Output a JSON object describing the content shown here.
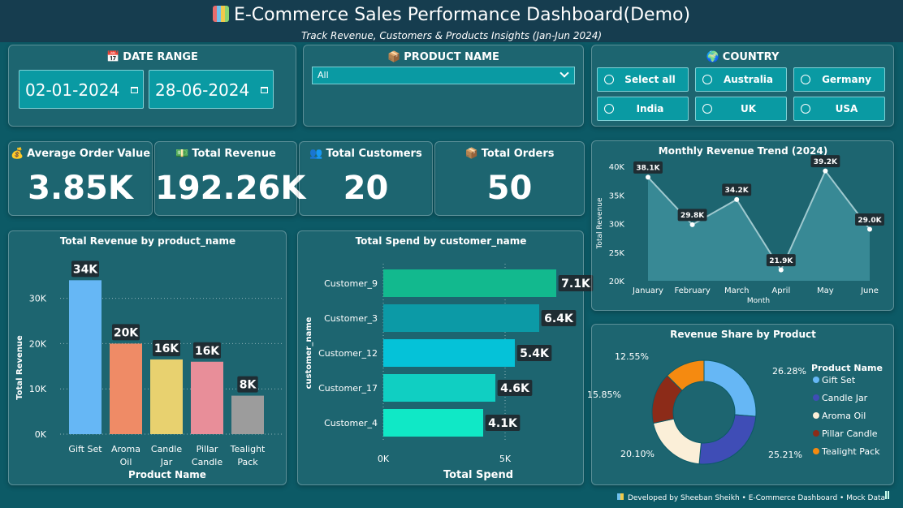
{
  "header": {
    "title": "E-Commerce Sales Performance Dashboard(Demo)",
    "subtitle": "Track Revenue, Customers & Products Insights (Jan-Jun 2024)",
    "icon": "bar-chart-icon"
  },
  "filters": {
    "date_range": {
      "label": "DATE RANGE",
      "start": "02-01-2024",
      "end": "28-06-2024",
      "icon": "calendar-icon"
    },
    "product_name": {
      "label": "PRODUCT NAME",
      "value": "All",
      "icon": "box-icon"
    },
    "country": {
      "label": "COUNTRY",
      "icon": "globe-icon",
      "options": [
        "Select all",
        "Australia",
        "Germany",
        "India",
        "UK",
        "USA"
      ]
    }
  },
  "kpis": [
    {
      "label": "Average Order Value",
      "value": "3.85K",
      "icon": "money-bag-icon"
    },
    {
      "label": "Total Revenue",
      "value": "192.26K",
      "icon": "cash-icon"
    },
    {
      "label": "Total Customers",
      "value": "20",
      "icon": "people-icon"
    },
    {
      "label": "Total Orders",
      "value": "50",
      "icon": "box-icon"
    }
  ],
  "colors": {
    "background": "#0c5a66",
    "header": "#163d4f",
    "slicer": "#0a9aa3",
    "area_fill": "#3d8f9b",
    "line": "#9fc9cf"
  },
  "chart_data": [
    {
      "type": "bar",
      "title": "Total Revenue by product_name",
      "xlabel": "Product Name",
      "ylabel": "Total Revenue",
      "categories": [
        [
          "Gift Set"
        ],
        [
          "Aroma",
          "Oil"
        ],
        [
          "Candle",
          "Jar"
        ],
        [
          "Pillar",
          "Candle"
        ],
        [
          "Tealight",
          "Pack"
        ]
      ],
      "values": [
        34000,
        20000,
        16500,
        16000,
        8500
      ],
      "data_labels": [
        "34K",
        "20K",
        "16K",
        "16K",
        "8K"
      ],
      "colors": [
        "#66b7f5",
        "#ef8b66",
        "#e8d16f",
        "#e88e99",
        "#9c9c9c"
      ],
      "ylim": [
        0,
        38000
      ],
      "yticks": [
        0,
        10000,
        20000,
        30000
      ],
      "ytick_labels": [
        "0K",
        "10K",
        "20K",
        "30K"
      ]
    },
    {
      "type": "bar",
      "orientation": "horizontal",
      "title": "Total Spend by customer_name",
      "xlabel": "Total Spend",
      "ylabel": "customer_name",
      "categories": [
        "Customer_9",
        "Customer_3",
        "Customer_12",
        "Customer_17",
        "Customer_4"
      ],
      "values": [
        7100,
        6400,
        5400,
        4600,
        4100
      ],
      "data_labels": [
        "7.1K",
        "6.4K",
        "5.4K",
        "4.6K",
        "4.1K"
      ],
      "colors": [
        "#12b98e",
        "#0c9aa6",
        "#05c2d8",
        "#10cfc2",
        "#10e8c6"
      ],
      "xlim": [
        0,
        8000
      ],
      "xticks": [
        0,
        5000
      ],
      "xtick_labels": [
        "0K",
        "5K"
      ]
    },
    {
      "type": "area",
      "title": "Monthly Revenue Trend (2024)",
      "xlabel": "Month",
      "ylabel": "Total Revenue",
      "x": [
        "January",
        "February",
        "March",
        "April",
        "May",
        "June"
      ],
      "values": [
        38100,
        29800,
        34200,
        21900,
        39200,
        29000
      ],
      "data_labels": [
        "38.1K",
        "29.8K",
        "34.2K",
        "21.9K",
        "39.2K",
        "29.0K"
      ],
      "ylim": [
        20000,
        40000
      ],
      "yticks": [
        20000,
        25000,
        30000,
        35000,
        40000
      ],
      "ytick_labels": [
        "20K",
        "25K",
        "30K",
        "35K",
        "40K"
      ]
    },
    {
      "type": "pie",
      "donut": true,
      "title": "Revenue Share by Product",
      "legend_title": "Product Name",
      "legend_position": "right",
      "categories": [
        "Gift Set",
        "Candle Jar",
        "Aroma Oil",
        "Pillar Candle",
        "Tealight Pack"
      ],
      "values": [
        26.28,
        25.21,
        20.1,
        15.85,
        12.55
      ],
      "data_labels": [
        "26.28%",
        "25.21%",
        "20.10%",
        "15.85%",
        "12.55%"
      ],
      "colors": [
        "#66b7f5",
        "#3f4db6",
        "#fbefd8",
        "#8c2b18",
        "#f58a10"
      ]
    }
  ],
  "footer": {
    "text": "Developed by Sheeban Sheikh • E-Commerce Dashboard • Mock Data",
    "icon": "bar-chart-icon"
  }
}
